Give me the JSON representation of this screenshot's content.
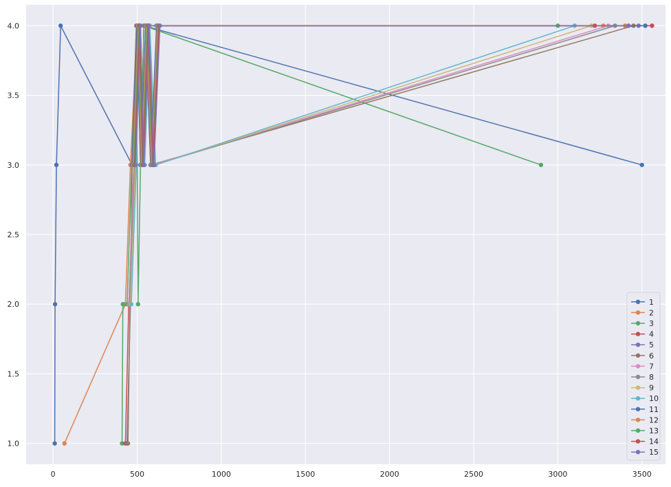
{
  "chart_data": {
    "type": "line",
    "title": "",
    "xlabel": "",
    "ylabel": "",
    "xlim": [
      -160,
      3640
    ],
    "ylim": [
      0.85,
      4.15
    ],
    "x_ticks": [
      0,
      500,
      1000,
      1500,
      2000,
      2500,
      3000,
      3500
    ],
    "x_tick_labels": [
      "0",
      "500",
      "1000",
      "1500",
      "2000",
      "2500",
      "3000",
      "3500"
    ],
    "y_ticks": [
      1.0,
      1.5,
      2.0,
      2.5,
      3.0,
      3.5,
      4.0
    ],
    "y_tick_labels": [
      "1.0",
      "1.5",
      "2.0",
      "2.5",
      "3.0",
      "3.5",
      "4.0"
    ],
    "grid": true,
    "legend_position": "lower-right",
    "series": [
      {
        "name": "1",
        "color": "#4c72b0",
        "x": [
          10,
          12,
          20,
          45,
          470,
          500,
          520,
          540,
          3500
        ],
        "y": [
          1,
          2,
          3,
          4,
          3,
          4,
          3,
          4,
          3
        ]
      },
      {
        "name": "2",
        "color": "#dd8452",
        "x": [
          68,
          430,
          460,
          500,
          530,
          560,
          3400
        ],
        "y": [
          1,
          2,
          3,
          4,
          3,
          4,
          4
        ]
      },
      {
        "name": "3",
        "color": "#55a868",
        "x": [
          410,
          415,
          440,
          495,
          505,
          520,
          540,
          2900
        ],
        "y": [
          1,
          2,
          2,
          4,
          2,
          3,
          4,
          3
        ]
      },
      {
        "name": "4",
        "color": "#c44e52",
        "x": [
          430,
          450,
          480,
          510,
          530,
          560,
          3560
        ],
        "y": [
          1,
          2,
          3,
          4,
          3,
          4,
          4
        ]
      },
      {
        "name": "5",
        "color": "#8172b3",
        "x": [
          440,
          460,
          490,
          520,
          540,
          570,
          3480
        ],
        "y": [
          1,
          2,
          3,
          4,
          3,
          4,
          4
        ]
      },
      {
        "name": "6",
        "color": "#937860",
        "x": [
          445,
          470,
          495,
          525,
          550,
          580,
          3450
        ],
        "y": [
          1,
          3,
          4,
          3,
          4,
          3,
          4
        ]
      },
      {
        "name": "7",
        "color": "#da8bc3",
        "x": [
          450,
          480,
          500,
          530,
          560,
          590,
          3300
        ],
        "y": [
          2,
          3,
          4,
          3,
          4,
          3,
          4
        ]
      },
      {
        "name": "8",
        "color": "#8c8c8c",
        "x": [
          455,
          485,
          505,
          535,
          565,
          600,
          3340
        ],
        "y": [
          2,
          3,
          4,
          3,
          4,
          3,
          4
        ]
      },
      {
        "name": "9",
        "color": "#ccb974",
        "x": [
          460,
          490,
          510,
          540,
          570,
          605,
          3200
        ],
        "y": [
          2,
          3,
          4,
          3,
          4,
          3,
          4
        ]
      },
      {
        "name": "10",
        "color": "#64b5cd",
        "x": [
          465,
          495,
          515,
          545,
          575,
          610,
          3100
        ],
        "y": [
          2,
          3,
          4,
          3,
          4,
          3,
          4
        ]
      },
      {
        "name": "11",
        "color": "#4c72b0",
        "x": [
          470,
          500,
          520,
          550,
          580,
          615,
          3520
        ],
        "y": [
          3,
          4,
          3,
          4,
          3,
          4,
          4
        ]
      },
      {
        "name": "12",
        "color": "#dd8452",
        "x": [
          475,
          505,
          525,
          555,
          585,
          620,
          3270
        ],
        "y": [
          3,
          4,
          3,
          4,
          3,
          4,
          4
        ]
      },
      {
        "name": "13",
        "color": "#55a868",
        "x": [
          480,
          510,
          530,
          560,
          590,
          625,
          3000
        ],
        "y": [
          3,
          4,
          3,
          4,
          3,
          4,
          4
        ]
      },
      {
        "name": "14",
        "color": "#c44e52",
        "x": [
          485,
          515,
          535,
          565,
          595,
          630,
          3220
        ],
        "y": [
          3,
          4,
          3,
          4,
          3,
          4,
          4
        ]
      },
      {
        "name": "15",
        "color": "#8172b3",
        "x": [
          490,
          520,
          540,
          570,
          600,
          635,
          3420
        ],
        "y": [
          3,
          4,
          3,
          4,
          3,
          4,
          4
        ]
      }
    ]
  }
}
